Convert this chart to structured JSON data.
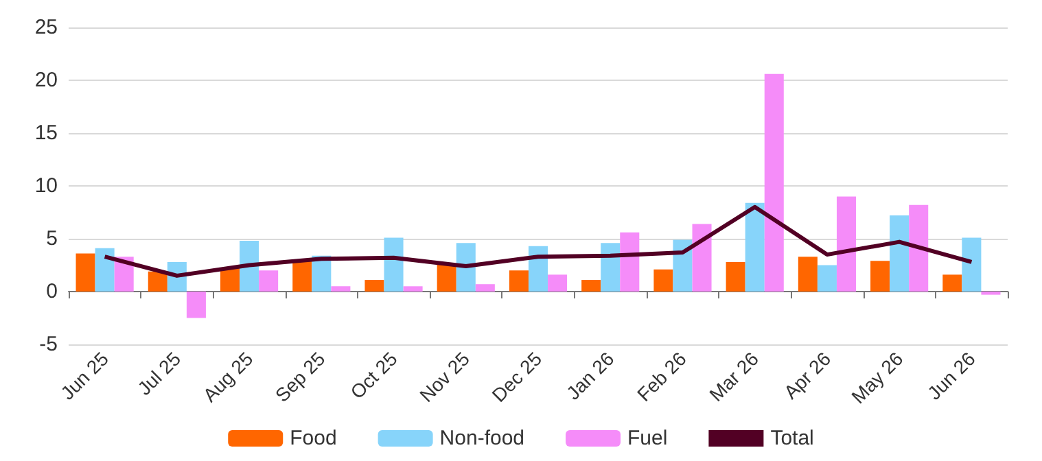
{
  "chart_data": {
    "type": "bar",
    "categories": [
      "Jun 25",
      "Jul 25",
      "Aug 25",
      "Sep 25",
      "Oct 25",
      "Nov 25",
      "Dec 25",
      "Jan 26",
      "Feb 26",
      "Mar 26",
      "Apr 26",
      "May 26",
      "Jun 26"
    ],
    "series": [
      {
        "name": "Food",
        "color": "#ff6600",
        "values": [
          3.6,
          1.9,
          2.2,
          2.9,
          1.1,
          2.6,
          2.0,
          1.1,
          2.1,
          2.8,
          3.3,
          2.9,
          1.6
        ]
      },
      {
        "name": "Non-food",
        "color": "#87d4fa",
        "values": [
          4.1,
          2.8,
          4.8,
          3.4,
          5.1,
          4.6,
          4.3,
          4.6,
          4.9,
          8.4,
          2.5,
          7.2,
          5.1
        ]
      },
      {
        "name": "Fuel",
        "color": "#f58cf9",
        "values": [
          3.3,
          -2.5,
          2.0,
          0.5,
          0.5,
          0.7,
          1.6,
          5.6,
          6.4,
          20.6,
          9.0,
          8.2,
          -0.3
        ]
      },
      {
        "name": "Total",
        "type": "line",
        "color": "#520024",
        "values": [
          3.3,
          1.5,
          2.5,
          3.1,
          3.2,
          2.4,
          3.3,
          3.4,
          3.7,
          8.0,
          3.5,
          4.7,
          2.8
        ]
      }
    ],
    "ylim": [
      -5,
      25
    ],
    "yticks": [
      -5,
      0,
      5,
      10,
      15,
      20,
      25
    ],
    "grid": "y",
    "legend": "bottom",
    "marker": "none"
  }
}
